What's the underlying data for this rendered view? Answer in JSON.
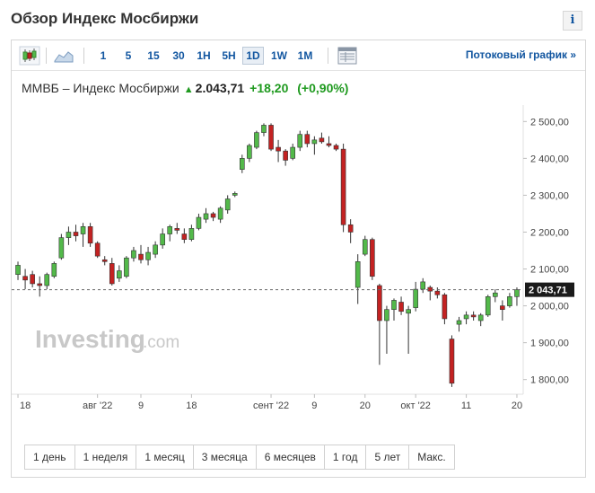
{
  "header": {
    "title": "Обзор Индекс Мосбиржи",
    "info_label": "i"
  },
  "toolbar": {
    "timeframes": [
      {
        "label": "1"
      },
      {
        "label": "5"
      },
      {
        "label": "15"
      },
      {
        "label": "30"
      },
      {
        "label": "1H"
      },
      {
        "label": "5H"
      },
      {
        "label": "1D",
        "active": true
      },
      {
        "label": "1W"
      },
      {
        "label": "1M"
      }
    ],
    "stream_link": "Потоковый график  »",
    "icons": [
      "candlestick-icon",
      "area-chart-icon",
      "table-icon"
    ]
  },
  "quote": {
    "name": "ММВБ – Индекс Мосбиржи",
    "price": "2.043,71",
    "change": "+18,20",
    "change_pct": "(+0,90%)",
    "direction": "up"
  },
  "chart": {
    "watermark": "Investing",
    "watermark_suffix": ".com",
    "y_ticks": [
      "2 500,00",
      "2 400,00",
      "2 300,00",
      "2 200,00",
      "2 100,00",
      "2 000,00",
      "1 900,00",
      "1 800,00"
    ],
    "x_ticks": [
      "18",
      "авг '22",
      "9",
      "18",
      "сент '22",
      "9",
      "20",
      "окт '22",
      "11",
      "20"
    ],
    "last_price_label": "2 043,71",
    "colors": {
      "up": "#53b94a",
      "down": "#c32222",
      "price_tag": "#1a1a1a"
    }
  },
  "chart_data": {
    "type": "candlestick",
    "x_tick_labels": [
      "18",
      "авг '22",
      "9",
      "18",
      "сент '22",
      "9",
      "20",
      "окт '22",
      "11",
      "20"
    ],
    "ylim": [
      1770,
      2530
    ],
    "y_tick_values": [
      2500,
      2400,
      2300,
      2200,
      2100,
      2000,
      1900,
      1800
    ],
    "last_value": 2043.71,
    "candles": [
      {
        "o": 2085,
        "h": 2120,
        "l": 2070,
        "c": 2110
      },
      {
        "o": 2080,
        "h": 2100,
        "l": 2045,
        "c": 2070
      },
      {
        "o": 2085,
        "h": 2095,
        "l": 2050,
        "c": 2060
      },
      {
        "o": 2060,
        "h": 2080,
        "l": 2025,
        "c": 2055
      },
      {
        "o": 2055,
        "h": 2090,
        "l": 2045,
        "c": 2085
      },
      {
        "o": 2080,
        "h": 2120,
        "l": 2075,
        "c": 2115
      },
      {
        "o": 2130,
        "h": 2195,
        "l": 2125,
        "c": 2185
      },
      {
        "o": 2185,
        "h": 2215,
        "l": 2165,
        "c": 2200
      },
      {
        "o": 2200,
        "h": 2220,
        "l": 2175,
        "c": 2190
      },
      {
        "o": 2195,
        "h": 2225,
        "l": 2160,
        "c": 2215
      },
      {
        "o": 2215,
        "h": 2225,
        "l": 2160,
        "c": 2170
      },
      {
        "o": 2170,
        "h": 2175,
        "l": 2130,
        "c": 2135
      },
      {
        "o": 2125,
        "h": 2135,
        "l": 2110,
        "c": 2120
      },
      {
        "o": 2115,
        "h": 2130,
        "l": 2055,
        "c": 2060
      },
      {
        "o": 2075,
        "h": 2110,
        "l": 2065,
        "c": 2095
      },
      {
        "o": 2080,
        "h": 2135,
        "l": 2075,
        "c": 2130
      },
      {
        "o": 2130,
        "h": 2160,
        "l": 2120,
        "c": 2150
      },
      {
        "o": 2140,
        "h": 2165,
        "l": 2115,
        "c": 2125
      },
      {
        "o": 2125,
        "h": 2160,
        "l": 2110,
        "c": 2145
      },
      {
        "o": 2140,
        "h": 2175,
        "l": 2130,
        "c": 2165
      },
      {
        "o": 2165,
        "h": 2210,
        "l": 2155,
        "c": 2195
      },
      {
        "o": 2195,
        "h": 2220,
        "l": 2175,
        "c": 2215
      },
      {
        "o": 2210,
        "h": 2225,
        "l": 2195,
        "c": 2205
      },
      {
        "o": 2195,
        "h": 2210,
        "l": 2170,
        "c": 2180
      },
      {
        "o": 2180,
        "h": 2220,
        "l": 2175,
        "c": 2210
      },
      {
        "o": 2210,
        "h": 2250,
        "l": 2205,
        "c": 2240
      },
      {
        "o": 2235,
        "h": 2265,
        "l": 2225,
        "c": 2250
      },
      {
        "o": 2250,
        "h": 2255,
        "l": 2230,
        "c": 2240
      },
      {
        "o": 2235,
        "h": 2270,
        "l": 2225,
        "c": 2265
      },
      {
        "o": 2260,
        "h": 2300,
        "l": 2250,
        "c": 2290
      },
      {
        "o": 2300,
        "h": 2310,
        "l": 2295,
        "c": 2305
      },
      {
        "o": 2370,
        "h": 2410,
        "l": 2360,
        "c": 2400
      },
      {
        "o": 2400,
        "h": 2440,
        "l": 2390,
        "c": 2435
      },
      {
        "o": 2430,
        "h": 2475,
        "l": 2425,
        "c": 2470
      },
      {
        "o": 2470,
        "h": 2495,
        "l": 2460,
        "c": 2490
      },
      {
        "o": 2490,
        "h": 2495,
        "l": 2420,
        "c": 2425
      },
      {
        "o": 2430,
        "h": 2450,
        "l": 2390,
        "c": 2420
      },
      {
        "o": 2420,
        "h": 2425,
        "l": 2380,
        "c": 2395
      },
      {
        "o": 2400,
        "h": 2440,
        "l": 2395,
        "c": 2430
      },
      {
        "o": 2430,
        "h": 2475,
        "l": 2420,
        "c": 2465
      },
      {
        "o": 2465,
        "h": 2475,
        "l": 2430,
        "c": 2440
      },
      {
        "o": 2440,
        "h": 2460,
        "l": 2410,
        "c": 2450
      },
      {
        "o": 2455,
        "h": 2470,
        "l": 2440,
        "c": 2445
      },
      {
        "o": 2440,
        "h": 2460,
        "l": 2430,
        "c": 2435
      },
      {
        "o": 2435,
        "h": 2440,
        "l": 2420,
        "c": 2425
      },
      {
        "o": 2425,
        "h": 2440,
        "l": 2200,
        "c": 2220
      },
      {
        "o": 2220,
        "h": 2235,
        "l": 2170,
        "c": 2200
      },
      {
        "o": 2050,
        "h": 2140,
        "l": 2005,
        "c": 2120
      },
      {
        "o": 2140,
        "h": 2190,
        "l": 2135,
        "c": 2180
      },
      {
        "o": 2180,
        "h": 2185,
        "l": 2070,
        "c": 2080
      },
      {
        "o": 2055,
        "h": 2060,
        "l": 1840,
        "c": 1960
      },
      {
        "o": 1960,
        "h": 2000,
        "l": 1870,
        "c": 1990
      },
      {
        "o": 1990,
        "h": 2020,
        "l": 1960,
        "c": 2015
      },
      {
        "o": 2010,
        "h": 2025,
        "l": 1975,
        "c": 1985
      },
      {
        "o": 1980,
        "h": 2000,
        "l": 1870,
        "c": 1990
      },
      {
        "o": 1995,
        "h": 2065,
        "l": 1985,
        "c": 2045
      },
      {
        "o": 2045,
        "h": 2075,
        "l": 2035,
        "c": 2065
      },
      {
        "o": 2050,
        "h": 2055,
        "l": 2015,
        "c": 2040
      },
      {
        "o": 2040,
        "h": 2050,
        "l": 2020,
        "c": 2030
      },
      {
        "o": 2030,
        "h": 2035,
        "l": 1950,
        "c": 1965
      },
      {
        "o": 1910,
        "h": 1920,
        "l": 1780,
        "c": 1790
      },
      {
        "o": 1950,
        "h": 1970,
        "l": 1930,
        "c": 1960
      },
      {
        "o": 1965,
        "h": 1985,
        "l": 1950,
        "c": 1975
      },
      {
        "o": 1975,
        "h": 1985,
        "l": 1960,
        "c": 1970
      },
      {
        "o": 1960,
        "h": 1980,
        "l": 1945,
        "c": 1975
      },
      {
        "o": 1975,
        "h": 2030,
        "l": 1970,
        "c": 2025
      },
      {
        "o": 2025,
        "h": 2045,
        "l": 2010,
        "c": 2035
      },
      {
        "o": 2000,
        "h": 2015,
        "l": 1960,
        "c": 1990
      },
      {
        "o": 2000,
        "h": 2035,
        "l": 1995,
        "c": 2025
      },
      {
        "o": 2025,
        "h": 2050,
        "l": 2000,
        "c": 2043.71
      }
    ]
  },
  "ranges": [
    {
      "label": "1 день"
    },
    {
      "label": "1 неделя"
    },
    {
      "label": "1 месяц"
    },
    {
      "label": "3 месяца"
    },
    {
      "label": "6 месяцев"
    },
    {
      "label": "1 год"
    },
    {
      "label": "5 лет"
    },
    {
      "label": "Макс."
    }
  ]
}
